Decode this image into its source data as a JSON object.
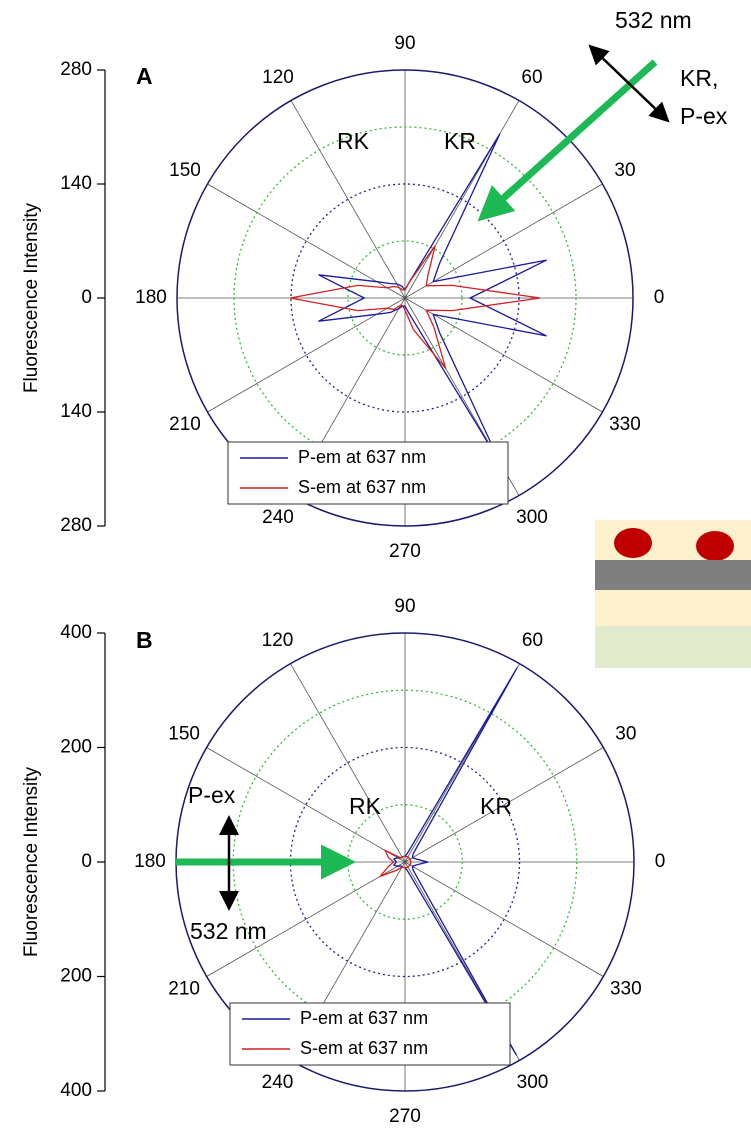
{
  "chart_data": [
    {
      "type": "polar",
      "y_label": "Fluorescence Intensity",
      "x": [
        0,
        15,
        30,
        45,
        60,
        75,
        90,
        105,
        120,
        135,
        150,
        165,
        180,
        195,
        210,
        225,
        240,
        255,
        270,
        285,
        300,
        315,
        330,
        345
      ],
      "series": [
        {
          "name": "P-em at 637 nm",
          "color": "#1a1aa0",
          "values": [
            80,
            180,
            40,
            60,
            233,
            20,
            10,
            15,
            20,
            25,
            40,
            110,
            50,
            110,
            40,
            25,
            15,
            10,
            10,
            20,
            234,
            60,
            40,
            180
          ]
        },
        {
          "name": "S-em at 637 nm",
          "color": "#d42020",
          "values": [
            166,
            60,
            30,
            40,
            74,
            20,
            10,
            10,
            15,
            20,
            25,
            60,
            141,
            60,
            25,
            20,
            10,
            10,
            15,
            40,
            100,
            50,
            30,
            60
          ]
        }
      ],
      "ylim": [
        -280,
        280
      ],
      "yticks": [
        {
          "value": -280,
          "label": "280"
        },
        {
          "value": -140,
          "label": "140"
        },
        0,
        140,
        280
      ],
      "angle_ticks": [
        0,
        30,
        60,
        90,
        120,
        150,
        180,
        210,
        240,
        270,
        300,
        330
      ],
      "rings": [
        70,
        140,
        210
      ],
      "ring_colors": [
        "#33bb33",
        "#2020a0",
        "#33bb33"
      ],
      "annotations": [
        "A",
        "RK",
        "KR",
        "532 nm",
        "KR,",
        "P-ex"
      ]
    },
    {
      "type": "polar",
      "y_label": "Fluorescence Intensity",
      "x": [
        0,
        15,
        30,
        45,
        60,
        75,
        90,
        105,
        120,
        135,
        150,
        165,
        180,
        195,
        210,
        225,
        240,
        255,
        270,
        285,
        300,
        315,
        330,
        345
      ],
      "series": [
        {
          "name": "P-em at 637 nm",
          "color": "#1a1aa0",
          "values": [
            40,
            20,
            15,
            20,
            392,
            15,
            10,
            10,
            10,
            10,
            15,
            20,
            15,
            20,
            15,
            10,
            10,
            10,
            10,
            15,
            390,
            20,
            15,
            20
          ]
        },
        {
          "name": "S-em at 637 nm",
          "color": "#d42020",
          "values": [
            10,
            10,
            10,
            10,
            10,
            10,
            10,
            10,
            10,
            10,
            40,
            30,
            20,
            30,
            50,
            20,
            10,
            10,
            10,
            10,
            10,
            10,
            10,
            10
          ]
        }
      ],
      "ylim": [
        -400,
        400
      ],
      "yticks": [
        {
          "value": -400,
          "label": "400"
        },
        {
          "value": -200,
          "label": "200"
        },
        0,
        200,
        400
      ],
      "angle_ticks": [
        0,
        30,
        60,
        90,
        120,
        150,
        180,
        210,
        240,
        270,
        300,
        330
      ],
      "rings": [
        100,
        200,
        300
      ],
      "ring_colors": [
        "#33bb33",
        "#2020a0",
        "#33bb33"
      ],
      "annotations": [
        "B",
        "RK",
        "KR",
        "P-ex",
        "532 nm"
      ]
    }
  ]
}
